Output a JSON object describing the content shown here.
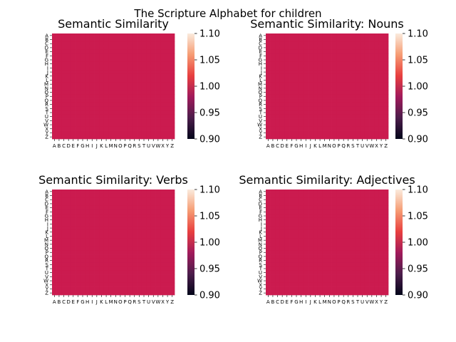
{
  "figure": {
    "suptitle": "The Scripture Alphabet for children"
  },
  "colorbar": {
    "ticks": [
      "0.90",
      "0.95",
      "1.00",
      "1.05",
      "1.10"
    ],
    "gradient": [
      "#03051a",
      "#4c1d4b",
      "#a11a5b",
      "#e83f3f",
      "#f69c73",
      "#faebdd"
    ]
  },
  "chart_data": [
    {
      "type": "heatmap",
      "title": "Semantic Similarity",
      "x_labels": [
        "A",
        "B",
        "C",
        "D",
        "E",
        "F",
        "G",
        "H",
        "I",
        "J",
        "K",
        "L",
        "M",
        "N",
        "O",
        "P",
        "Q",
        "R",
        "S",
        "T",
        "U",
        "V",
        "W",
        "X",
        "Y",
        "Z"
      ],
      "y_labels": [
        "A",
        "B",
        "C",
        "D",
        "E",
        "F",
        "G",
        "H",
        "I",
        "J",
        "K",
        "L",
        "M",
        "N",
        "O",
        "P",
        "Q",
        "R",
        "S",
        "T",
        "U",
        "V",
        "W",
        "X",
        "Y",
        "Z"
      ],
      "value": 1.0,
      "cell_color": "#cb1b4f",
      "vmin": 0.9,
      "vmax": 1.1
    },
    {
      "type": "heatmap",
      "title": "Semantic Similarity: Nouns",
      "x_labels": [
        "A",
        "B",
        "C",
        "D",
        "E",
        "F",
        "G",
        "H",
        "I",
        "J",
        "K",
        "L",
        "M",
        "N",
        "O",
        "P",
        "Q",
        "R",
        "S",
        "T",
        "U",
        "V",
        "W",
        "X",
        "Y",
        "Z"
      ],
      "y_labels": [
        "A",
        "B",
        "C",
        "D",
        "E",
        "F",
        "G",
        "H",
        "I",
        "J",
        "K",
        "L",
        "M",
        "N",
        "O",
        "P",
        "Q",
        "R",
        "S",
        "T",
        "U",
        "V",
        "W",
        "X",
        "Y",
        "Z"
      ],
      "value": 1.0,
      "cell_color": "#cb1b4f",
      "vmin": 0.9,
      "vmax": 1.1
    },
    {
      "type": "heatmap",
      "title": "Semantic Similarity: Verbs",
      "x_labels": [
        "A",
        "B",
        "C",
        "D",
        "E",
        "F",
        "G",
        "H",
        "I",
        "J",
        "K",
        "L",
        "M",
        "N",
        "O",
        "P",
        "Q",
        "R",
        "S",
        "T",
        "U",
        "V",
        "W",
        "X",
        "Y",
        "Z"
      ],
      "y_labels": [
        "A",
        "B",
        "C",
        "D",
        "E",
        "F",
        "G",
        "H",
        "I",
        "J",
        "K",
        "L",
        "M",
        "N",
        "O",
        "P",
        "Q",
        "R",
        "S",
        "T",
        "U",
        "V",
        "W",
        "X",
        "Y",
        "Z"
      ],
      "value": 1.0,
      "cell_color": "#cb1b4f",
      "vmin": 0.9,
      "vmax": 1.1
    },
    {
      "type": "heatmap",
      "title": "Semantic Similarity: Adjectives",
      "x_labels": [
        "A",
        "B",
        "C",
        "D",
        "E",
        "F",
        "G",
        "H",
        "I",
        "J",
        "K",
        "L",
        "M",
        "N",
        "O",
        "P",
        "Q",
        "R",
        "S",
        "T",
        "U",
        "V",
        "W",
        "X",
        "Y",
        "Z"
      ],
      "y_labels": [
        "A",
        "B",
        "C",
        "D",
        "E",
        "F",
        "G",
        "H",
        "I",
        "J",
        "K",
        "L",
        "M",
        "N",
        "O",
        "P",
        "Q",
        "R",
        "S",
        "T",
        "U",
        "V",
        "W",
        "X",
        "Y",
        "Z"
      ],
      "value": 1.0,
      "cell_color": "#cb1b4f",
      "vmin": 0.9,
      "vmax": 1.1
    }
  ]
}
